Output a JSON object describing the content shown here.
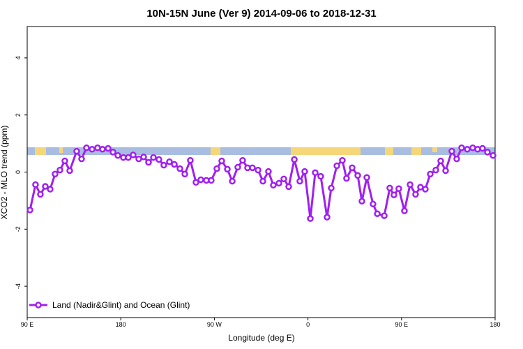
{
  "chart_data": {
    "type": "line",
    "title": "10N-15N June (Ver 9)   2014-09-06 to 2018-12-31",
    "x_label": "Longitude (deg E)",
    "y_label": "XCO2 - MLO trend (ppm)",
    "xlim": [
      90,
      540
    ],
    "ylim": [
      -5,
      5
    ],
    "xticks": [
      {
        "value": 90,
        "label": "90 E"
      },
      {
        "value": 180,
        "label": "180"
      },
      {
        "value": 270,
        "label": "90 W"
      },
      {
        "value": 360,
        "label": "0"
      },
      {
        "value": 450,
        "label": "90 E"
      },
      {
        "value": 540,
        "label": "180"
      }
    ],
    "yticks": [
      -4,
      -2,
      0,
      2,
      4
    ],
    "x": [
      92.7,
      98.0,
      102.7,
      107.4,
      112.1,
      116.8,
      121.5,
      126.2,
      130.9,
      137.6,
      142.3,
      147.0,
      152.4,
      157.7,
      162.4,
      167.8,
      172.5,
      177.2,
      182.5,
      187.2,
      191.9,
      197.3,
      202.0,
      206.7,
      211.4,
      216.7,
      221.4,
      226.8,
      231.5,
      236.9,
      241.6,
      246.9,
      252.3,
      257.0,
      262.3,
      267.0,
      272.4,
      277.1,
      282.5,
      287.2,
      292.5,
      297.2,
      301.9,
      306.6,
      312.0,
      316.7,
      322.0,
      326.7,
      332.1,
      336.8,
      341.5,
      346.9,
      352.2,
      356.9,
      362.3,
      367.0,
      372.3,
      378.4,
      382.4,
      387.8,
      393.1,
      397.1,
      402.5,
      407.9,
      411.9,
      416.6,
      422.6,
      426.7,
      433.4,
      438.7,
      442.7,
      447.4,
      452.8,
      458.2,
      463.5,
      468.2,
      472.9,
      477.6,
      483.0,
      487.7,
      492.4,
      498.4,
      503.1,
      507.8,
      513.2,
      518.5,
      523.2,
      527.9,
      532.6,
      538.0
    ],
    "series": [
      {
        "name": "Land (Nadir&Glint) and Ocean (Glint)",
        "color": "#a020f0",
        "values": [
          -1.33,
          -0.44,
          -0.78,
          -0.5,
          -0.6,
          -0.07,
          0.07,
          0.39,
          0.05,
          0.73,
          0.46,
          0.85,
          0.8,
          0.85,
          0.8,
          0.83,
          0.7,
          0.58,
          0.51,
          0.51,
          0.6,
          0.46,
          0.53,
          0.34,
          0.51,
          0.44,
          0.24,
          0.36,
          0.27,
          0.12,
          -0.07,
          0.41,
          -0.36,
          -0.27,
          -0.29,
          -0.29,
          0.12,
          0.39,
          0.1,
          -0.32,
          0.17,
          0.41,
          0.15,
          0.15,
          0.07,
          -0.32,
          0.02,
          -0.46,
          -0.39,
          -0.24,
          -0.51,
          0.44,
          -0.32,
          0.02,
          -1.63,
          -0.02,
          -0.15,
          -1.58,
          -0.56,
          0.22,
          0.41,
          -0.22,
          0.15,
          -0.12,
          -1.02,
          -0.19,
          -1.12,
          -1.46,
          -1.53,
          -0.56,
          -0.8,
          -0.58,
          -1.36,
          -0.44,
          -0.78,
          -0.53,
          -0.6,
          -0.07,
          0.07,
          0.39,
          0.05,
          0.73,
          0.46,
          0.85,
          0.8,
          0.85,
          0.8,
          0.83,
          0.7,
          0.58
        ]
      }
    ],
    "legend": "bottom-left"
  }
}
